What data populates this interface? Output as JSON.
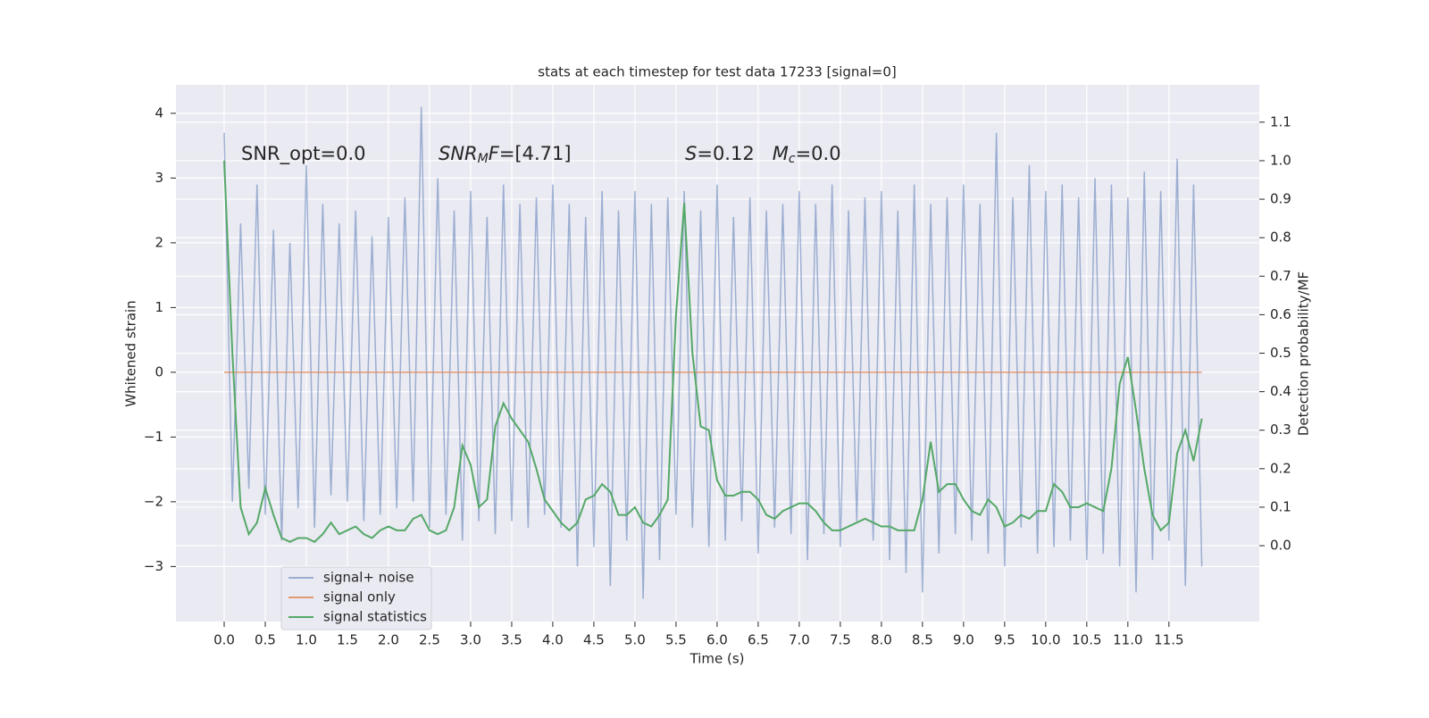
{
  "chart_data": {
    "type": "line",
    "title": "stats at each timestep for test data 17233 [signal=0]",
    "x_label": "Time (s)",
    "y_label": "Whitened strain",
    "y2_label": "Detection probability/MF",
    "annotations": [
      [
        {
          "text": "SNR_opt=0.0"
        }
      ],
      [
        {
          "text": "SNR",
          "italic": true
        },
        {
          "text": "M",
          "italic": true,
          "sub": true
        },
        {
          "text": "F",
          "italic": true
        },
        {
          "text": "=[4.71]"
        }
      ],
      [
        {
          "text": "S",
          "italic": true
        },
        {
          "text": "=0.12   "
        },
        {
          "text": "M",
          "italic": true
        },
        {
          "text": "c",
          "italic": true,
          "sub": true
        },
        {
          "text": "=0.0"
        }
      ]
    ],
    "x": [
      0,
      0.1,
      0.2,
      0.3,
      0.4,
      0.5,
      0.6,
      0.7,
      0.8,
      0.9,
      1,
      1.1,
      1.2,
      1.3,
      1.4,
      1.5,
      1.6,
      1.7,
      1.8,
      1.9,
      2,
      2.1,
      2.2,
      2.3,
      2.4,
      2.5,
      2.6,
      2.7,
      2.8,
      2.9,
      3,
      3.1,
      3.2,
      3.3,
      3.4,
      3.5,
      3.6,
      3.7,
      3.8,
      3.9,
      4,
      4.1,
      4.2,
      4.3,
      4.4,
      4.5,
      4.6,
      4.7,
      4.8,
      4.9,
      5,
      5.1,
      5.2,
      5.3,
      5.4,
      5.5,
      5.6,
      5.7,
      5.8,
      5.9,
      6,
      6.1,
      6.2,
      6.3,
      6.4,
      6.5,
      6.6,
      6.7,
      6.8,
      6.9,
      7,
      7.1,
      7.2,
      7.3,
      7.4,
      7.5,
      7.6,
      7.7,
      7.8,
      7.9,
      8,
      8.1,
      8.2,
      8.3,
      8.4,
      8.5,
      8.6,
      8.7,
      8.8,
      8.9,
      9,
      9.1,
      9.2,
      9.3,
      9.4,
      9.5,
      9.6,
      9.7,
      9.8,
      9.9,
      10,
      10.1,
      10.2,
      10.3,
      10.4,
      10.5,
      10.6,
      10.7,
      10.8,
      10.9,
      11,
      11.1,
      11.2,
      11.3,
      11.4,
      11.5,
      11.6,
      11.7,
      11.8,
      11.9
    ],
    "series": [
      {
        "name": "signal+ noise",
        "color": "#4c72b0",
        "alpha": 0.5,
        "values": [
          3.7,
          -2.0,
          2.3,
          -1.8,
          2.9,
          -2.2,
          2.2,
          -2.6,
          2.0,
          -2.1,
          3.2,
          -2.4,
          2.6,
          -1.9,
          2.3,
          -2.0,
          2.5,
          -2.3,
          2.1,
          -2.2,
          2.4,
          -2.1,
          2.7,
          -2.0,
          4.1,
          -2.4,
          3.0,
          -2.2,
          2.5,
          -2.6,
          2.8,
          -2.3,
          2.4,
          -2.5,
          2.9,
          -2.3,
          2.6,
          -2.4,
          2.7,
          -2.2,
          2.9,
          -2.4,
          2.6,
          -3.0,
          2.4,
          -2.7,
          2.8,
          -3.3,
          2.5,
          -2.6,
          2.8,
          -3.5,
          2.6,
          -2.9,
          2.7,
          -2.2,
          2.8,
          -2.4,
          2.5,
          -2.7,
          2.9,
          -2.6,
          2.4,
          -2.3,
          2.7,
          -2.8,
          2.5,
          -2.4,
          2.6,
          -2.5,
          2.8,
          -2.9,
          2.6,
          -2.5,
          2.9,
          -2.7,
          2.5,
          -2.3,
          2.7,
          -2.6,
          2.8,
          -2.9,
          2.5,
          -3.1,
          2.9,
          -3.4,
          2.6,
          -2.8,
          2.7,
          -2.5,
          2.9,
          -2.6,
          2.6,
          -2.8,
          3.7,
          -3.0,
          2.7,
          -2.4,
          3.2,
          -2.8,
          2.8,
          -2.7,
          2.9,
          -2.6,
          2.7,
          -2.9,
          3.0,
          -2.8,
          2.9,
          -3.0,
          2.7,
          -3.4,
          3.1,
          -2.9,
          2.8,
          -2.6,
          3.3,
          -3.3,
          2.9,
          -3.0
        ]
      },
      {
        "name": "signal only",
        "color": "#dd8452",
        "alpha": 0.8,
        "values": [
          0,
          0,
          0,
          0,
          0,
          0,
          0,
          0,
          0,
          0,
          0,
          0,
          0,
          0,
          0,
          0,
          0,
          0,
          0,
          0,
          0,
          0,
          0,
          0,
          0,
          0,
          0,
          0,
          0,
          0,
          0,
          0,
          0,
          0,
          0,
          0,
          0,
          0,
          0,
          0,
          0,
          0,
          0,
          0,
          0,
          0,
          0,
          0,
          0,
          0,
          0,
          0,
          0,
          0,
          0,
          0,
          0,
          0,
          0,
          0,
          0,
          0,
          0,
          0,
          0,
          0,
          0,
          0,
          0,
          0,
          0,
          0,
          0,
          0,
          0,
          0,
          0,
          0,
          0,
          0,
          0,
          0,
          0,
          0,
          0,
          0,
          0,
          0,
          0,
          0,
          0,
          0,
          0,
          0,
          0,
          0,
          0,
          0,
          0,
          0,
          0,
          0,
          0,
          0,
          0,
          0,
          0,
          0,
          0,
          0,
          0,
          0,
          0,
          0,
          0,
          0,
          0,
          0,
          0,
          0
        ]
      },
      {
        "name": "signal statistics",
        "color": "#55a868",
        "alpha": 1,
        "axis": "y2",
        "values": [
          1.0,
          0.5,
          0.1,
          0.03,
          0.06,
          0.15,
          0.08,
          0.02,
          0.01,
          0.02,
          0.02,
          0.01,
          0.03,
          0.06,
          0.03,
          0.04,
          0.05,
          0.03,
          0.02,
          0.04,
          0.05,
          0.04,
          0.04,
          0.07,
          0.08,
          0.04,
          0.03,
          0.04,
          0.1,
          0.26,
          0.21,
          0.1,
          0.12,
          0.31,
          0.37,
          0.33,
          0.3,
          0.27,
          0.2,
          0.12,
          0.09,
          0.06,
          0.04,
          0.06,
          0.12,
          0.13,
          0.16,
          0.14,
          0.08,
          0.08,
          0.1,
          0.06,
          0.05,
          0.08,
          0.12,
          0.6,
          0.89,
          0.5,
          0.31,
          0.3,
          0.17,
          0.13,
          0.13,
          0.14,
          0.14,
          0.12,
          0.08,
          0.07,
          0.09,
          0.1,
          0.11,
          0.11,
          0.09,
          0.06,
          0.04,
          0.04,
          0.05,
          0.06,
          0.07,
          0.06,
          0.05,
          0.05,
          0.04,
          0.04,
          0.04,
          0.12,
          0.27,
          0.14,
          0.16,
          0.16,
          0.12,
          0.09,
          0.08,
          0.12,
          0.1,
          0.05,
          0.06,
          0.08,
          0.07,
          0.09,
          0.09,
          0.16,
          0.14,
          0.1,
          0.1,
          0.11,
          0.1,
          0.09,
          0.2,
          0.42,
          0.49,
          0.35,
          0.2,
          0.08,
          0.04,
          0.06,
          0.24,
          0.3,
          0.22,
          0.33
        ]
      }
    ],
    "xlim": [
      -0.587,
      12.6
    ],
    "ylim": [
      -3.85,
      4.44
    ],
    "y2lim": [
      -0.197,
      1.197
    ],
    "xticks": [
      {
        "value": 0,
        "label": "0.0"
      },
      0.5,
      {
        "value": 1,
        "label": "1.0"
      },
      1.5,
      {
        "value": 2,
        "label": "2.0"
      },
      2.5,
      {
        "value": 3,
        "label": "3.0"
      },
      3.5,
      {
        "value": 4,
        "label": "4.0"
      },
      4.5,
      {
        "value": 5,
        "label": "5.0"
      },
      5.5,
      {
        "value": 6,
        "label": "6.0"
      },
      6.5,
      {
        "value": 7,
        "label": "7.0"
      },
      7.5,
      {
        "value": 8,
        "label": "8.0"
      },
      8.5,
      {
        "value": 9,
        "label": "9.0"
      },
      9.5,
      {
        "value": 10,
        "label": "10.0"
      },
      10.5,
      {
        "value": 11,
        "label": "11.0"
      },
      11.5
    ],
    "yticks": [
      {
        "value": -3,
        "label": "−3"
      },
      {
        "value": -2,
        "label": "−2"
      },
      {
        "value": -1,
        "label": "−1"
      },
      0,
      1,
      2,
      3,
      4
    ],
    "y2ticks": [
      {
        "value": 0,
        "label": "0.0"
      },
      0.1,
      0.2,
      0.3,
      0.4,
      0.5,
      0.6,
      0.7,
      0.8,
      0.9,
      {
        "value": 1,
        "label": "1.0"
      },
      1.1
    ],
    "grid": true,
    "legend": "lower left"
  }
}
